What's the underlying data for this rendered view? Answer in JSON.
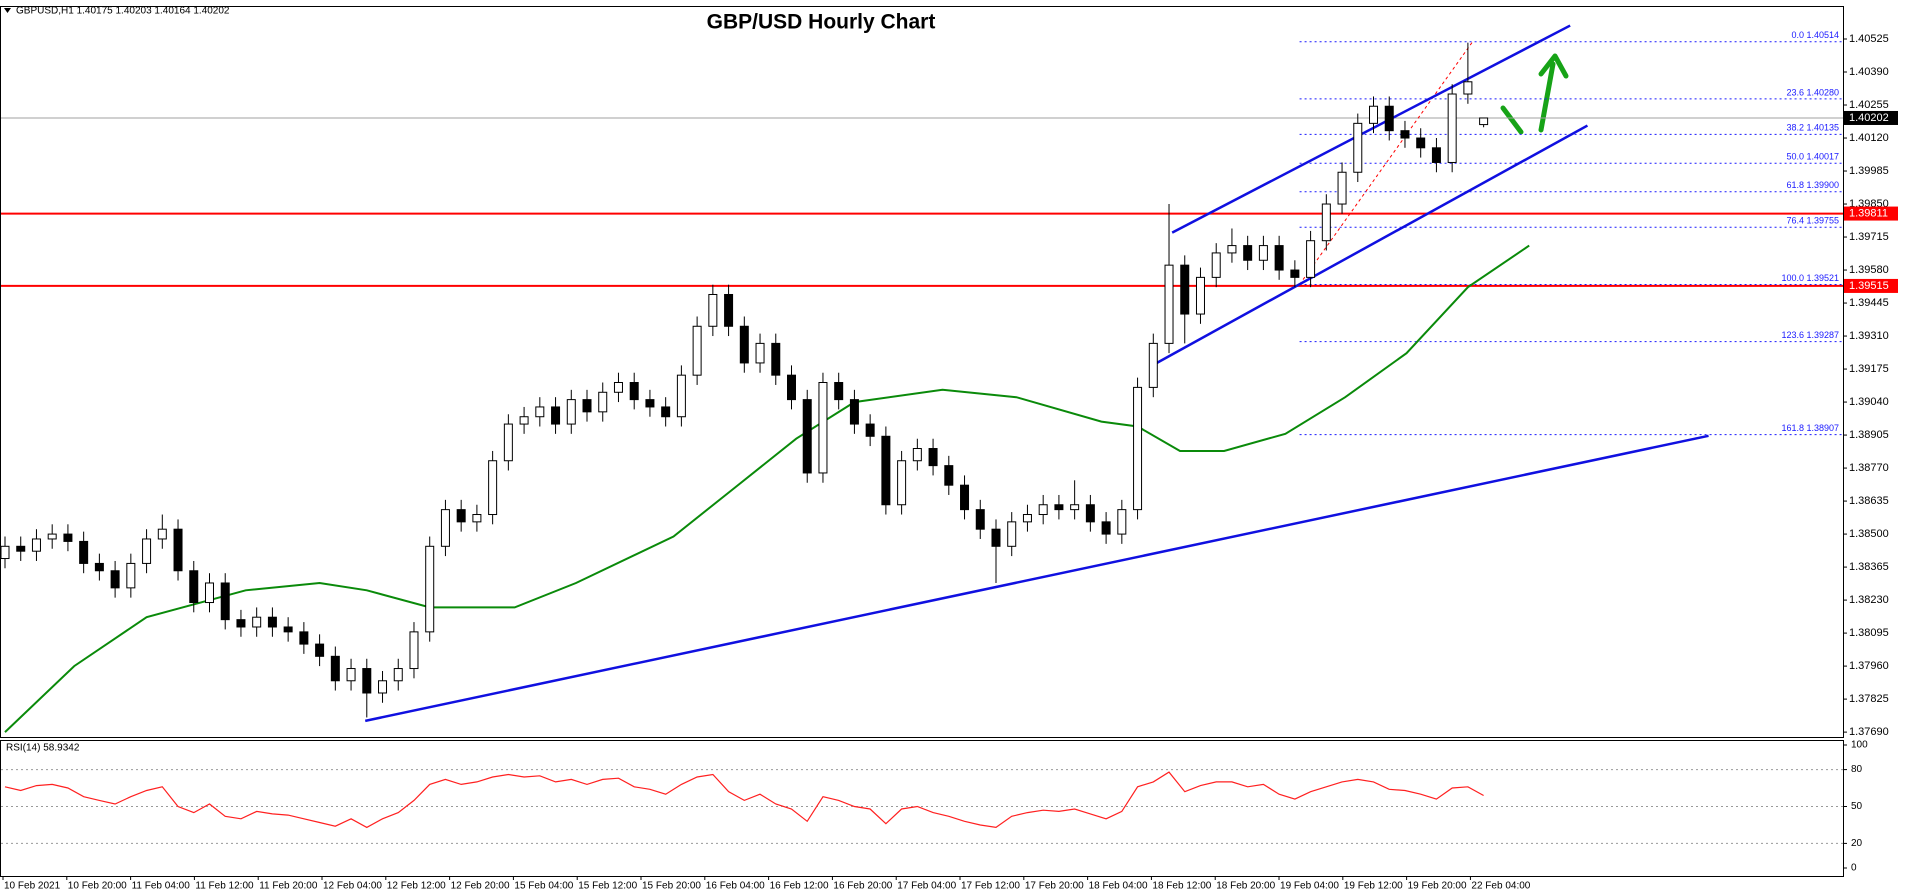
{
  "chart_data": {
    "type": "candlestick",
    "title": "GBP/USD Hourly Chart",
    "header": "GBPUSD,H1  1.40175 1.40203 1.40164 1.40202",
    "xlabels": [
      "10 Feb 2021",
      "10 Feb 20:00",
      "11 Feb 04:00",
      "11 Feb 12:00",
      "11 Feb 20:00",
      "12 Feb 04:00",
      "12 Feb 12:00",
      "12 Feb 20:00",
      "15 Feb 04:00",
      "15 Feb 12:00",
      "15 Feb 20:00",
      "16 Feb 04:00",
      "16 Feb 12:00",
      "16 Feb 20:00",
      "17 Feb 04:00",
      "17 Feb 12:00",
      "17 Feb 20:00",
      "18 Feb 04:00",
      "18 Feb 12:00",
      "18 Feb 20:00",
      "19 Feb 04:00",
      "19 Feb 12:00",
      "19 Feb 20:00",
      "22 Feb 04:00"
    ],
    "open": [
      1.384,
      1.3845,
      1.3843,
      1.3848,
      1.385,
      1.3847,
      1.3838,
      1.3835,
      1.3828,
      1.3838,
      1.3848,
      1.3852,
      1.3835,
      1.3822,
      1.383,
      1.3815,
      1.3812,
      1.3816,
      1.3812,
      1.381,
      1.3805,
      1.38,
      1.379,
      1.3795,
      1.3785,
      1.379,
      1.3795,
      1.381,
      1.3845,
      1.386,
      1.3855,
      1.3858,
      1.388,
      1.3895,
      1.3898,
      1.3902,
      1.3895,
      1.3905,
      1.39,
      1.3908,
      1.3912,
      1.3905,
      1.3902,
      1.3898,
      1.3915,
      1.3935,
      1.3948,
      1.3935,
      1.392,
      1.3928,
      1.3915,
      1.3905,
      1.3875,
      1.3912,
      1.3905,
      1.3895,
      1.389,
      1.3862,
      1.388,
      1.3885,
      1.3878,
      1.387,
      1.386,
      1.3852,
      1.3845,
      1.3855,
      1.3858,
      1.3862,
      1.386,
      1.3862,
      1.3855,
      1.385,
      1.386,
      1.391,
      1.3928,
      1.396,
      1.394,
      1.3955,
      1.3965,
      1.3968,
      1.3962,
      1.3968,
      1.3958,
      1.3955,
      1.397,
      1.3985,
      1.3998,
      1.4018,
      1.4025,
      1.4015,
      1.4012,
      1.4008,
      1.4002,
      1.403,
      1.40175
    ],
    "high": [
      1.3849,
      1.3849,
      1.3852,
      1.3854,
      1.3854,
      1.3851,
      1.3842,
      1.3839,
      1.3842,
      1.3852,
      1.3858,
      1.3856,
      1.3839,
      1.3834,
      1.3834,
      1.3819,
      1.382,
      1.382,
      1.3816,
      1.3814,
      1.3809,
      1.3804,
      1.3799,
      1.3799,
      1.3794,
      1.3799,
      1.3814,
      1.3849,
      1.3864,
      1.3864,
      1.3862,
      1.3884,
      1.3899,
      1.3902,
      1.3906,
      1.3906,
      1.3909,
      1.3909,
      1.3912,
      1.3916,
      1.3916,
      1.3909,
      1.3906,
      1.3919,
      1.3939,
      1.3952,
      1.3952,
      1.3939,
      1.3932,
      1.3932,
      1.3919,
      1.3909,
      1.3916,
      1.3916,
      1.3909,
      1.3899,
      1.3894,
      1.3884,
      1.3889,
      1.3889,
      1.3882,
      1.3874,
      1.3864,
      1.3856,
      1.3859,
      1.3862,
      1.3866,
      1.3866,
      1.3872,
      1.3866,
      1.3859,
      1.3864,
      1.3914,
      1.3932,
      1.3985,
      1.3964,
      1.3959,
      1.3969,
      1.3975,
      1.3972,
      1.3972,
      1.3972,
      1.3962,
      1.3974,
      1.3989,
      1.4002,
      1.4022,
      1.4029,
      1.4029,
      1.4019,
      1.4016,
      1.4012,
      1.4034,
      1.4051,
      1.40203
    ],
    "low": [
      1.3836,
      1.3839,
      1.3839,
      1.3844,
      1.3843,
      1.3834,
      1.3831,
      1.3824,
      1.3824,
      1.3834,
      1.3844,
      1.3831,
      1.3818,
      1.3818,
      1.3811,
      1.3808,
      1.3808,
      1.3808,
      1.3806,
      1.3801,
      1.3796,
      1.3786,
      1.3786,
      1.3775,
      1.3781,
      1.3786,
      1.3791,
      1.3806,
      1.3841,
      1.3851,
      1.3851,
      1.3854,
      1.3876,
      1.3891,
      1.3894,
      1.3891,
      1.3891,
      1.3896,
      1.3896,
      1.3904,
      1.3901,
      1.3898,
      1.3894,
      1.3894,
      1.3911,
      1.3931,
      1.3931,
      1.3916,
      1.3916,
      1.3911,
      1.3901,
      1.3871,
      1.3871,
      1.3901,
      1.3891,
      1.3886,
      1.3858,
      1.3858,
      1.3876,
      1.3874,
      1.3866,
      1.3856,
      1.3848,
      1.383,
      1.3841,
      1.3851,
      1.3854,
      1.3856,
      1.3856,
      1.3851,
      1.3846,
      1.3846,
      1.3856,
      1.3906,
      1.3924,
      1.3928,
      1.3936,
      1.3951,
      1.3961,
      1.3958,
      1.3958,
      1.3954,
      1.3951,
      1.3951,
      1.3966,
      1.3981,
      1.3994,
      1.4014,
      1.4011,
      1.4008,
      1.4004,
      1.3998,
      1.3998,
      1.4026,
      1.40164
    ],
    "close": [
      1.3845,
      1.3843,
      1.3848,
      1.385,
      1.3847,
      1.3838,
      1.3835,
      1.3828,
      1.3838,
      1.3848,
      1.3852,
      1.3835,
      1.3822,
      1.383,
      1.3815,
      1.3812,
      1.3816,
      1.3812,
      1.381,
      1.3805,
      1.38,
      1.379,
      1.3795,
      1.3785,
      1.379,
      1.3795,
      1.381,
      1.3845,
      1.386,
      1.3855,
      1.3858,
      1.388,
      1.3895,
      1.3898,
      1.3902,
      1.3895,
      1.3905,
      1.39,
      1.3908,
      1.3912,
      1.3905,
      1.3902,
      1.3898,
      1.3915,
      1.3935,
      1.3948,
      1.3935,
      1.392,
      1.3928,
      1.3915,
      1.3905,
      1.3875,
      1.3912,
      1.3905,
      1.3895,
      1.389,
      1.3862,
      1.388,
      1.3885,
      1.3878,
      1.387,
      1.386,
      1.3852,
      1.3845,
      1.3855,
      1.3858,
      1.3862,
      1.386,
      1.3862,
      1.3855,
      1.385,
      1.386,
      1.391,
      1.3928,
      1.396,
      1.394,
      1.3955,
      1.3965,
      1.3968,
      1.3962,
      1.3968,
      1.3958,
      1.3955,
      1.397,
      1.3985,
      1.3998,
      1.4018,
      1.4025,
      1.4015,
      1.4012,
      1.4008,
      1.4002,
      1.403,
      1.4035,
      1.40202
    ],
    "ylim": [
      1.3767,
      1.4066
    ],
    "yticks": [
      {
        "value": 1.3769,
        "label": "1.37690"
      },
      1.37825,
      {
        "value": 1.3796,
        "label": "1.37960"
      },
      1.38095,
      {
        "value": 1.3823,
        "label": "1.38230"
      },
      1.38365,
      {
        "value": 1.385,
        "label": "1.38500"
      },
      1.38635,
      {
        "value": 1.3877,
        "label": "1.38770"
      },
      1.38905,
      {
        "value": 1.3904,
        "label": "1.39040"
      },
      1.39175,
      {
        "value": 1.3931,
        "label": "1.39310"
      },
      1.39445,
      {
        "value": 1.3958,
        "label": "1.39580"
      },
      1.39715,
      {
        "value": 1.3985,
        "label": "1.39850"
      },
      1.39985,
      {
        "value": 1.4012,
        "label": "1.40120"
      },
      1.40255,
      {
        "value": 1.4039,
        "label": "1.40390"
      },
      1.40525
    ],
    "ma": {
      "color": "#0a8a0a",
      "x": [
        0,
        4.4,
        9,
        15.3,
        20,
        23,
        27,
        32.4,
        36.3,
        42.5,
        46.4,
        50.3,
        54,
        59.6,
        64.3,
        69.7,
        72,
        74.7,
        77.5,
        81.4,
        85.2,
        89.1,
        93,
        96.9
      ],
      "values": [
        1.3769,
        1.3796,
        1.3816,
        1.3827,
        1.383,
        1.3827,
        1.382,
        1.382,
        1.383,
        1.3849,
        1.3869,
        1.3889,
        1.3904,
        1.3909,
        1.3906,
        1.3896,
        1.3894,
        1.3884,
        1.3884,
        1.3891,
        1.3906,
        1.3924,
        1.3951,
        1.3968
      ]
    },
    "trendline_color": "#1010e0",
    "trendlines": [
      {
        "x": [
          22.9,
          108.3
        ],
        "values": [
          1.37736,
          1.38902
        ]
      },
      {
        "x": [
          72.8,
          100.6
        ],
        "values": [
          1.39185,
          1.40171
        ]
      },
      {
        "x": [
          74.2,
          99.5
        ],
        "values": [
          1.39733,
          1.4058
        ]
      }
    ],
    "current": {
      "value": 1.40202,
      "color": "#a0a0a0"
    },
    "levels": [
      {
        "value": 1.39811,
        "color": "#ff0000"
      },
      {
        "value": 1.39515,
        "color": "#ff0000"
      }
    ],
    "fib": {
      "color": "#1a1aff",
      "anchor_x": [
        82.3,
        93.3
      ],
      "levels": [
        {
          "value": 1.40514,
          "label": "0.0 1.40514"
        },
        {
          "value": 1.4028,
          "label": "23.6 1.40280"
        },
        {
          "value": 1.40135,
          "label": "38.2 1.40135"
        },
        {
          "value": 1.40017,
          "label": "50.0 1.40017"
        },
        {
          "value": 1.399,
          "label": "61.8 1.39900"
        },
        {
          "value": 1.39755,
          "label": "76.4 1.39755"
        },
        {
          "value": 1.39521,
          "label": "100.0 1.39521"
        },
        {
          "value": 1.39287,
          "label": "123.6 1.39287"
        },
        {
          "value": 1.38907,
          "label": "161.8 1.38907"
        }
      ]
    },
    "rsi": {
      "label": "RSI(14) 58.9342",
      "color": "#ff2020",
      "ylim": [
        0,
        100
      ],
      "yticks": [
        0,
        20,
        50,
        80,
        100
      ],
      "values": [
        66,
        63,
        67,
        68,
        65,
        58,
        55,
        52,
        58,
        63,
        66,
        50,
        45,
        52,
        42,
        40,
        46,
        44,
        43,
        40,
        37,
        34,
        40,
        33,
        40,
        45,
        55,
        68,
        72,
        68,
        70,
        74,
        76,
        74,
        75,
        70,
        72,
        68,
        72,
        73,
        66,
        64,
        60,
        68,
        74,
        76,
        62,
        55,
        60,
        52,
        48,
        38,
        58,
        55,
        50,
        48,
        36,
        48,
        50,
        45,
        42,
        38,
        35,
        33,
        42,
        45,
        47,
        46,
        48,
        44,
        40,
        46,
        66,
        70,
        78,
        62,
        67,
        70,
        70,
        66,
        68,
        60,
        56,
        62,
        66,
        70,
        72,
        70,
        64,
        63,
        60,
        56,
        65,
        66,
        58.9342
      ]
    }
  }
}
